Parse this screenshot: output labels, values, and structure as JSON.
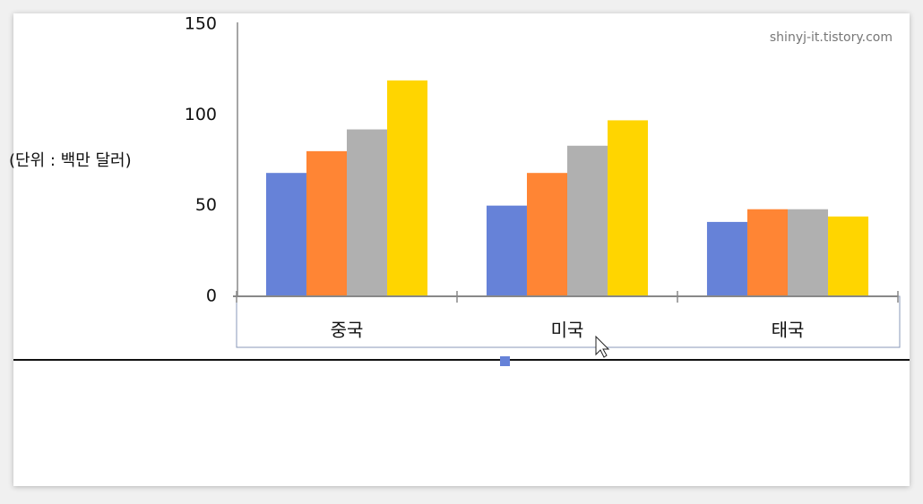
{
  "chart_data": {
    "type": "bar",
    "y_label": "(단위 : 백만 달러)",
    "categories": [
      "중국",
      "미국",
      "태국"
    ],
    "series": [
      {
        "color": "#6682d8",
        "values": [
          68,
          50,
          41
        ]
      },
      {
        "color": "#ff8534",
        "values": [
          80,
          68,
          48
        ]
      },
      {
        "color": "#b0b0b0",
        "values": [
          92,
          83,
          48
        ]
      },
      {
        "color": "#ffd500",
        "values": [
          119,
          97,
          44
        ]
      }
    ],
    "ylim": [
      0,
      150
    ],
    "yticks": [
      0,
      50,
      100,
      150
    ],
    "grid": false
  },
  "watermark": "shinyj-it.tistory.com"
}
